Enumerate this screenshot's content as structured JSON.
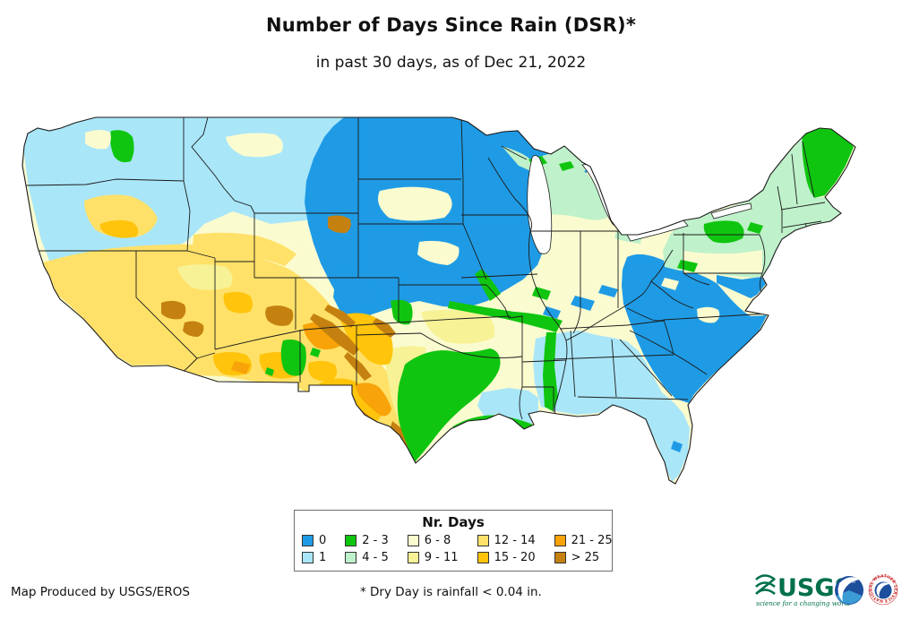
{
  "header": {
    "title": "Number of Days Since Rain (DSR)*",
    "subtitle": "in past 30 days, as of Dec 21, 2022"
  },
  "legend": {
    "title": "Nr. Days",
    "items": [
      {
        "label": "0",
        "key": "d0",
        "color": "#1F9BE5"
      },
      {
        "label": "1",
        "key": "d1",
        "color": "#A9E6F8"
      },
      {
        "label": "2 - 3",
        "key": "d2_3",
        "color": "#0FC50F"
      },
      {
        "label": "4 - 5",
        "key": "d4_5",
        "color": "#BFF1CA"
      },
      {
        "label": "6 - 8",
        "key": "d6_8",
        "color": "#FBFBD0"
      },
      {
        "label": "9 - 11",
        "key": "d9_11",
        "color": "#F7F296"
      },
      {
        "label": "12 - 14",
        "key": "d12_14",
        "color": "#FFE169"
      },
      {
        "label": "15 - 20",
        "key": "d15_20",
        "color": "#FFC40B"
      },
      {
        "label": "21 - 25",
        "key": "d21_25",
        "color": "#F8A309"
      },
      {
        "label": "> 25",
        "key": "d_gt25",
        "color": "#C5810F"
      }
    ]
  },
  "footer": {
    "credit": "Map Produced by USGS/EROS",
    "note": "* Dry Day is rainfall < 0.04 in."
  },
  "logos": {
    "usgs": {
      "name": "USGS",
      "tagline": "science for a changing world",
      "color": "#00704A"
    },
    "noaa": {
      "name": "NOAA",
      "dark": "#1C4E9C",
      "light": "#3A9BD5"
    },
    "nws": {
      "name": "NATIONAL WEATHER SERVICE",
      "ring_color": "#CC3333"
    }
  },
  "map": {
    "background": "#FFFFFF",
    "lake_fill": "#FFFFFF",
    "border_color": "#1B1B1B"
  }
}
